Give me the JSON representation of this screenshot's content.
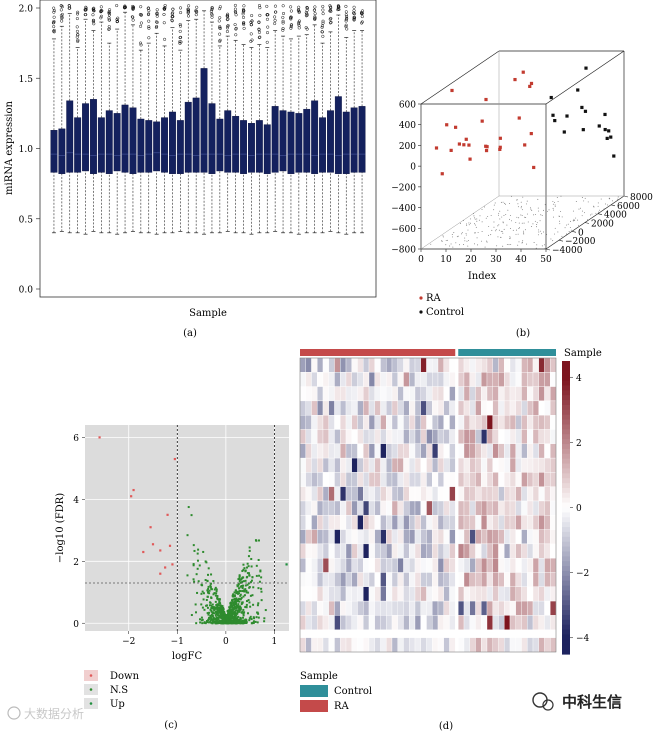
{
  "panels": {
    "a": "(a)",
    "b": "(b)",
    "c": "(c)",
    "d": "(d)"
  },
  "watermarks": {
    "left": "大数据分析",
    "right": "中科生信"
  },
  "chart_data": [
    {
      "id": "a",
      "type": "boxplot",
      "xlabel": "Sample",
      "ylabel": "miRNA expression",
      "ylim": [
        0,
        2.0
      ],
      "yticks": [
        0.0,
        0.5,
        1.0,
        1.5,
        2.0
      ],
      "ytick_labels": [
        "0.0",
        "0.5",
        "1.0",
        "1.5",
        "2.0"
      ],
      "box_color": "#14215e",
      "q1": [
        0.83,
        0.82,
        0.83,
        0.83,
        0.84,
        0.82,
        0.83,
        0.82,
        0.84,
        0.83,
        0.82,
        0.83,
        0.83,
        0.84,
        0.83,
        0.82,
        0.82,
        0.83,
        0.83,
        0.83,
        0.82,
        0.84,
        0.83,
        0.83,
        0.82,
        0.83,
        0.83,
        0.82,
        0.83,
        0.84,
        0.82,
        0.83,
        0.83,
        0.82,
        0.83,
        0.83,
        0.82,
        0.82,
        0.83,
        0.83
      ],
      "median": [
        0.96,
        0.95,
        0.97,
        0.96,
        0.96,
        0.95,
        0.96,
        0.96,
        0.95,
        0.96,
        0.96,
        0.95,
        0.96,
        0.97,
        0.96,
        0.95,
        0.96,
        0.96,
        0.95,
        0.96,
        0.96,
        0.96,
        0.95,
        0.96,
        0.96,
        0.95,
        0.96,
        0.96,
        0.96,
        0.95,
        0.96,
        0.96,
        0.96,
        0.95,
        0.96,
        0.96,
        0.95,
        0.96,
        0.96,
        0.96
      ],
      "q3": [
        1.13,
        1.14,
        1.34,
        1.22,
        1.32,
        1.35,
        1.22,
        1.27,
        1.25,
        1.31,
        1.29,
        1.21,
        1.2,
        1.19,
        1.22,
        1.26,
        1.2,
        1.33,
        1.36,
        1.57,
        1.32,
        1.21,
        1.27,
        1.23,
        1.2,
        1.18,
        1.2,
        1.17,
        1.3,
        1.27,
        1.26,
        1.25,
        1.28,
        1.34,
        1.22,
        1.27,
        1.37,
        1.26,
        1.29,
        1.3
      ],
      "whisker_low": [
        0.4,
        0.41,
        0.4,
        0.4,
        0.39,
        0.41,
        0.4,
        0.4,
        0.39,
        0.4,
        0.41,
        0.4,
        0.4,
        0.39,
        0.4,
        0.4,
        0.41,
        0.4,
        0.4,
        0.39,
        0.4,
        0.4,
        0.41,
        0.4,
        0.4,
        0.39,
        0.4,
        0.4,
        0.41,
        0.4,
        0.4,
        0.39,
        0.4,
        0.4,
        0.4,
        0.41,
        0.4,
        0.39,
        0.4,
        0.4
      ],
      "whisker_high": [
        1.78,
        1.87,
        1.96,
        1.72,
        1.92,
        1.84,
        1.9,
        1.75,
        1.85,
        1.97,
        1.88,
        1.7,
        1.75,
        1.82,
        1.73,
        1.86,
        1.7,
        1.91,
        1.92,
        1.98,
        1.9,
        1.73,
        1.8,
        1.77,
        1.74,
        1.72,
        1.74,
        1.72,
        1.84,
        1.8,
        1.78,
        1.8,
        1.81,
        1.88,
        1.75,
        1.83,
        1.95,
        1.79,
        1.84,
        1.84
      ]
    },
    {
      "id": "b",
      "type": "scatter3d",
      "xlabel": "Index",
      "x_ticks": [
        "0",
        "10",
        "20",
        "30",
        "40",
        "50"
      ],
      "y_ticks": [
        "−4000",
        "−2000",
        "0",
        "2000",
        "4000",
        "6000",
        "8000"
      ],
      "z_ticks": [
        "−800",
        "−600",
        "−400",
        "−200",
        "0",
        "200",
        "400",
        "600"
      ],
      "legend": [
        {
          "label": "RA",
          "color": "#c23b30"
        },
        {
          "label": "Control",
          "color": "#111111"
        }
      ],
      "series": [
        {
          "name": "RA",
          "color": "#c23b30",
          "points": [
            [
              2,
              0,
              560
            ],
            [
              1,
              -2000,
              90
            ],
            [
              2,
              -1500,
              -180
            ],
            [
              3,
              -1200,
              280
            ],
            [
              4,
              -900,
              20
            ],
            [
              5,
              -600,
              230
            ],
            [
              6,
              -400,
              60
            ],
            [
              7,
              -100,
              40
            ],
            [
              8,
              300,
              20
            ],
            [
              9,
              -500,
              110
            ],
            [
              10,
              -300,
              -90
            ],
            [
              12,
              800,
              230
            ],
            [
              13,
              1000,
              430
            ],
            [
              14,
              700,
              -50
            ],
            [
              15,
              400,
              0
            ],
            [
              16,
              -200,
              30
            ],
            [
              18,
              1200,
              -60
            ],
            [
              19,
              900,
              60
            ],
            [
              20,
              500,
              -10
            ],
            [
              22,
              2000,
              580
            ],
            [
              24,
              2500,
              630
            ],
            [
              25,
              1500,
              230
            ],
            [
              26,
              3000,
              500
            ],
            [
              28,
              2200,
              50
            ],
            [
              29,
              800,
              0
            ],
            [
              30,
              1800,
              -260
            ],
            [
              24,
              3500,
              450
            ]
          ]
        },
        {
          "name": "Control",
          "color": "#111111",
          "points": [
            [
              30,
              4500,
              300
            ],
            [
              32,
              4000,
              150
            ],
            [
              34,
              3500,
              120
            ],
            [
              35,
              5000,
              100
            ],
            [
              36,
              4200,
              -20
            ],
            [
              38,
              5500,
              330
            ],
            [
              40,
              6000,
              520
            ],
            [
              41,
              5200,
              -40
            ],
            [
              42,
              4600,
              200
            ],
            [
              44,
              6500,
              -60
            ],
            [
              45,
              7000,
              30
            ],
            [
              46,
              7500,
              -210
            ],
            [
              47,
              6800,
              -120
            ],
            [
              48,
              7200,
              -380
            ],
            [
              49,
              5800,
              -150
            ],
            [
              43,
              7800,
              -150
            ],
            [
              39,
              6300,
              90
            ]
          ]
        }
      ]
    },
    {
      "id": "c",
      "type": "scatter",
      "subtype": "volcano",
      "xlabel": "logFC",
      "ylabel": "−log10 (FDR)",
      "xlim": [
        -2.9,
        1.3
      ],
      "ylim": [
        -0.25,
        6.4
      ],
      "xticks": [
        -2,
        -1,
        0,
        1
      ],
      "xtick_labels": [
        "−2",
        "−1",
        "0",
        "1"
      ],
      "yticks": [
        0,
        2,
        4,
        6
      ],
      "ytick_labels": [
        "0",
        "2",
        "4",
        "6"
      ],
      "vlines": [
        -1,
        1
      ],
      "hline": 1.3,
      "legend": [
        {
          "label": "Down",
          "color": "#e05a5a"
        },
        {
          "label": "N.S",
          "color": "#2e8b2e"
        },
        {
          "label": "Up",
          "color": "#1f8f3f"
        }
      ],
      "series": [
        {
          "name": "Down",
          "color": "#e05a5a",
          "points": [
            [
              -2.6,
              6.0
            ],
            [
              -1.9,
              4.3
            ],
            [
              -1.95,
              4.1
            ],
            [
              -1.05,
              5.3
            ],
            [
              -1.55,
              3.1
            ],
            [
              -1.15,
              2.5
            ],
            [
              -1.35,
              2.35
            ],
            [
              -1.5,
              2.55
            ],
            [
              -1.7,
              2.3
            ],
            [
              -1.2,
              3.5
            ],
            [
              -1.1,
              1.9
            ],
            [
              -1.25,
              1.8
            ],
            [
              -1.35,
              1.6
            ]
          ]
        },
        {
          "name": "N.S",
          "color": "#2e8b2e",
          "points": []
        },
        {
          "name": "Up",
          "color": "#1f8f3f",
          "points": [
            [
              1.25,
              1.9
            ]
          ]
        }
      ]
    },
    {
      "id": "d",
      "type": "heatmap",
      "annotation_title": "Sample",
      "legend_title": "Sample",
      "legend": [
        {
          "label": "Control",
          "color": "#2f8f9a"
        },
        {
          "label": "RA",
          "color": "#c44a4a"
        }
      ],
      "colorbar_ticks": [
        "4",
        "2",
        "0",
        "−2",
        "−4"
      ],
      "value_range": [
        -4.5,
        4.5
      ],
      "groups": [
        {
          "name": "RA",
          "count": 27
        },
        {
          "name": "Control",
          "count": 17
        }
      ],
      "rows": 20,
      "row_gap_after": 18,
      "seed": 97
    }
  ]
}
